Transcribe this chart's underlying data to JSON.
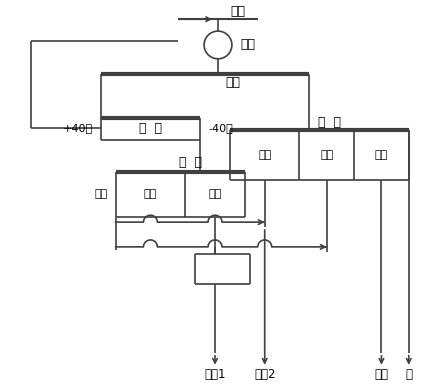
{
  "bg_color": "#ffffff",
  "line_color": "#404040",
  "labels": {
    "yuankuang": "原矿",
    "mo_kuang": "磨矿",
    "fen_ji": "分级",
    "shai_fen": "筛  分",
    "plus40": "+40目",
    "minus40": "-40目",
    "yao_chuang_R": "摇  床",
    "yao_chuang_L": "摇  床",
    "jing_R": "精矿",
    "zhong_R": "中矿",
    "wei_R": "尾矿",
    "zhong_L": "中矿",
    "jing_L": "精矿",
    "wei_L": "尾矿",
    "out_jing1": "精矿1",
    "out_jing2": "精矿2",
    "out_wei": "尾矿",
    "out_ni": "泥"
  },
  "figsize": [
    4.35,
    3.84
  ],
  "dpi": 100
}
